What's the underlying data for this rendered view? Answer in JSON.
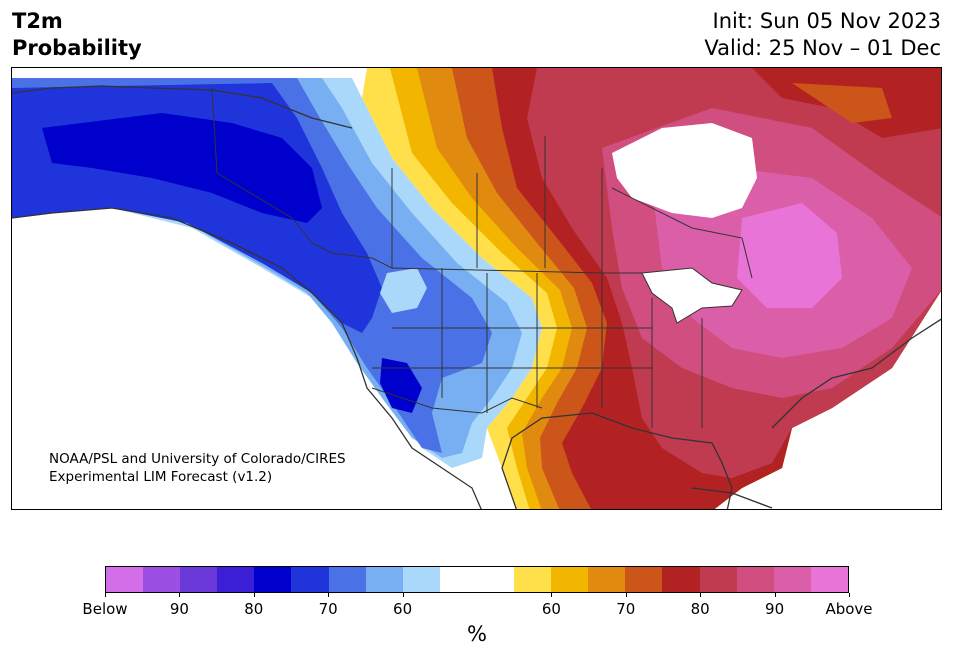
{
  "header": {
    "title_line1": "T2m",
    "title_line2": "Probability",
    "init_text": "Init: Sun 05 Nov 2023",
    "valid_text": "Valid: 25 Nov – 01 Dec"
  },
  "credit": {
    "line1": "NOAA/PSL and University of Colorado/CIRES",
    "line2": "Experimental LIM Forecast (v1.2)"
  },
  "colorbar": {
    "unit_label": "%",
    "tick_labels": [
      "Below",
      "90",
      "80",
      "70",
      "60",
      "60",
      "70",
      "80",
      "90",
      "Above"
    ],
    "colors": [
      "#d46ee8",
      "#9b4fe3",
      "#6a38d8",
      "#3a1fd6",
      "#0000cc",
      "#2034db",
      "#4a72e6",
      "#77aff2",
      "#aad8fa",
      "#ffffff",
      "#ffffff",
      "#ffe04a",
      "#f2b500",
      "#e08a10",
      "#cc5519",
      "#b22222",
      "#c13b50",
      "#d04f80",
      "#db5fa8",
      "#e874d8"
    ]
  },
  "map": {
    "below_colors": {
      "p60": "#aad8fa",
      "p65": "#77aff2",
      "p70": "#4a72e6",
      "p75": "#2034db",
      "p80": "#0000cc"
    },
    "above_colors": {
      "p55": "#ffe04a",
      "p60": "#f2b500",
      "p65": "#e08a10",
      "p70": "#cc5519",
      "p75": "#b22222",
      "p80": "#c13b50",
      "p85": "#d04f80",
      "p90": "#db5fa8",
      "p95": "#e874d8"
    },
    "neutral_color": "#ffffff",
    "border_color": "#333333"
  }
}
